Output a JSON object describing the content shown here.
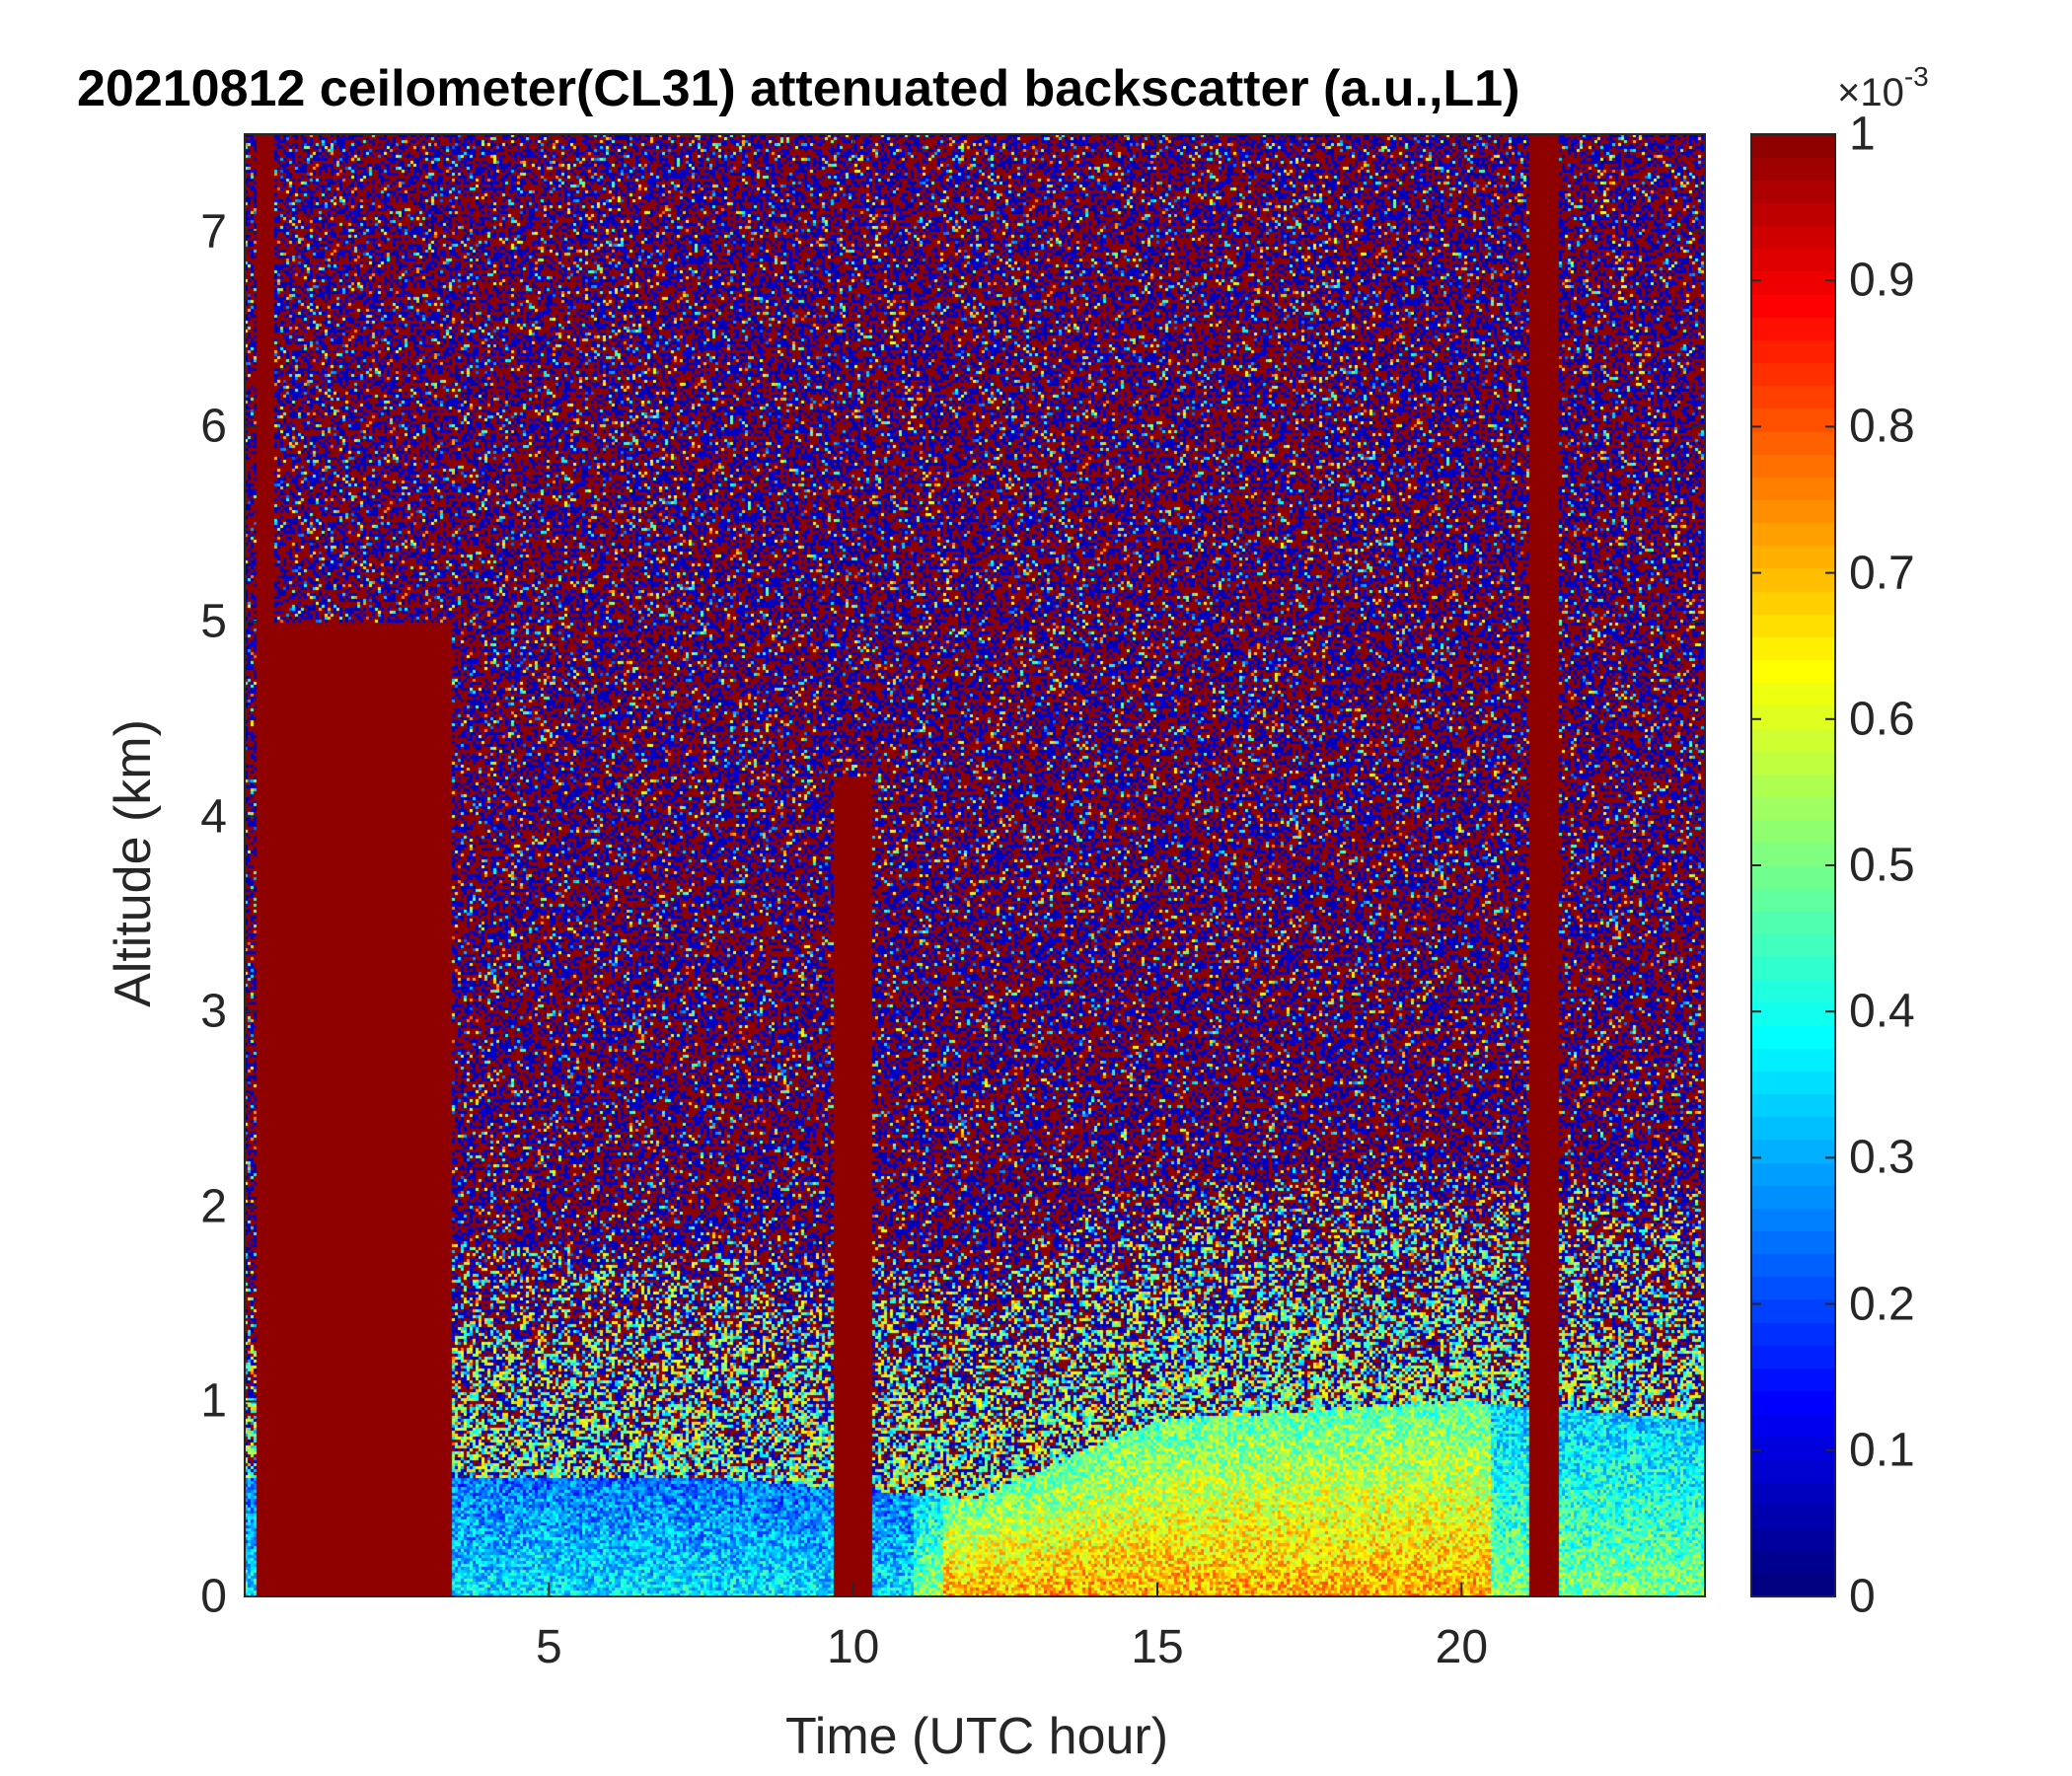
{
  "chart_data": {
    "type": "heatmap",
    "title": "20210812 ceilometer(CL31) attenuated backscatter (a.u.,L1)",
    "xlabel": "Time (UTC hour)",
    "ylabel": "Altitude (km)",
    "xlim": [
      0,
      24
    ],
    "ylim": [
      0,
      7.5
    ],
    "xticks": [
      5,
      10,
      15,
      20
    ],
    "yticks": [
      0,
      1,
      2,
      3,
      4,
      5,
      6,
      7
    ],
    "colorbar": {
      "ticks": [
        0,
        0.1,
        0.2,
        0.3,
        0.4,
        0.5,
        0.6,
        0.7,
        0.8,
        0.9,
        1
      ],
      "range": [
        0,
        1
      ],
      "exponent_base": "×10",
      "exponent": "-3",
      "colormap": "jet"
    },
    "features": {
      "cloud_columns_hours": [
        [
          0.2,
          0.5
        ],
        [
          0.5,
          3.4
        ],
        [
          9.7,
          10.3
        ],
        [
          21.1,
          21.6
        ]
      ],
      "cloud_top_km": [
        7.5,
        5.0,
        4.2,
        7.5
      ],
      "boundary_layer_top_km": [
        [
          3.5,
          0.6
        ],
        [
          8.0,
          0.6
        ],
        [
          12.0,
          0.5
        ],
        [
          15.0,
          0.9
        ],
        [
          20.0,
          1.0
        ],
        [
          24.0,
          0.9
        ]
      ],
      "max_surface_backscatter_hours": [
        13.0,
        19.0
      ]
    },
    "grid": false
  }
}
